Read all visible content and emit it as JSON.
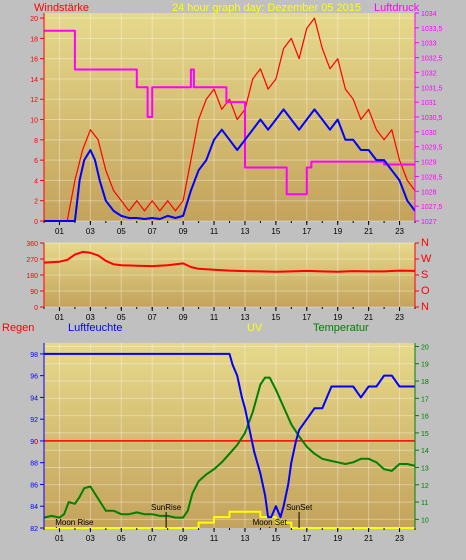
{
  "header": {
    "title": "24 hour graph day:  Dezember 05 2015",
    "left_label": "Windstärke",
    "right_label": "Luftdruck"
  },
  "colors": {
    "background": "#c0c0c0",
    "wind": "#ff0000",
    "wind_avg": "#0000ff",
    "pressure": "#ff00ff",
    "direction": "#ff0000",
    "rain": "#ff0000",
    "humidity": "#0000ff",
    "uv": "#ffff00",
    "temperature": "#008000",
    "axis_left": "#ff0000",
    "axis_right": "#ff00ff"
  },
  "chart_data": [
    {
      "type": "line",
      "name": "wind_pressure",
      "x_ticks": [
        "01",
        "03",
        "05",
        "07",
        "09",
        "11",
        "13",
        "15",
        "17",
        "19",
        "21",
        "23"
      ],
      "y_left_ticks": [
        "0",
        "2",
        "4",
        "6",
        "8",
        "10",
        "12",
        "14",
        "16",
        "18",
        "20"
      ],
      "y_right_ticks": [
        "1027",
        "1027,5",
        "1028",
        "1028,5",
        "1029",
        "1029,5",
        "1030",
        "1030,5",
        "1031",
        "1031,5",
        "1032",
        "1032,5",
        "1033",
        "1033,5",
        "1034"
      ],
      "ylim_left": [
        0,
        20.5
      ],
      "ylim_right": [
        1027,
        1034
      ],
      "xlim": [
        0,
        24
      ],
      "series": [
        {
          "name": "Windstärke",
          "axis": "left",
          "x": [
            0,
            1.5,
            2,
            2.5,
            3,
            3.5,
            4,
            4.5,
            5,
            5.5,
            6,
            6.5,
            7,
            7.5,
            8,
            8.5,
            9,
            9.5,
            10,
            10.5,
            11,
            11.5,
            12,
            12.5,
            13,
            13.5,
            14,
            14.5,
            15,
            15.5,
            16,
            16.5,
            17,
            17.5,
            18,
            18.5,
            19,
            19.5,
            20,
            20.5,
            21,
            21.5,
            22,
            22.5,
            23,
            23.5,
            24
          ],
          "y": [
            0,
            0,
            4,
            7,
            9,
            8,
            5,
            3,
            2,
            1,
            2,
            1,
            2,
            1,
            2,
            1,
            2,
            6,
            10,
            12,
            13,
            11,
            12,
            10,
            11,
            14,
            15,
            13,
            14,
            17,
            18,
            16,
            19,
            20,
            17,
            15,
            16,
            13,
            12,
            10,
            11,
            9,
            8,
            9,
            6,
            4,
            3
          ]
        },
        {
          "name": "Wind average",
          "axis": "left",
          "x": [
            0,
            1.5,
            2,
            2.3,
            2.6,
            3,
            3.3,
            3.6,
            4,
            4.5,
            5,
            5.5,
            6,
            6.5,
            7,
            7.5,
            8,
            8.5,
            9,
            9.5,
            10,
            10.5,
            11,
            11.5,
            12,
            12.5,
            13,
            13.5,
            14,
            14.5,
            15,
            15.5,
            16,
            16.5,
            17,
            17.5,
            18,
            18.5,
            19,
            19.5,
            20,
            20.5,
            21,
            21.5,
            22,
            22.5,
            23,
            23.5,
            24
          ],
          "y": [
            0,
            0,
            0,
            4,
            6,
            7,
            6,
            4,
            2,
            1,
            0.5,
            0.3,
            0.3,
            0.2,
            0.3,
            0.2,
            0.5,
            0.3,
            0.5,
            3,
            5,
            6,
            8,
            9,
            8,
            7,
            8,
            9,
            10,
            9,
            10,
            11,
            10,
            9,
            10,
            11,
            10,
            9,
            10,
            8,
            8,
            7,
            7,
            6,
            6,
            5,
            4,
            2,
            1
          ]
        },
        {
          "name": "Luftdruck",
          "axis": "right",
          "x": [
            0,
            2,
            2,
            6,
            6,
            6.7,
            6.7,
            7,
            7,
            9.5,
            9.5,
            9.7,
            9.7,
            11.8,
            11.8,
            13,
            13,
            15.7,
            15.7,
            17,
            17,
            17.3,
            17.3,
            22,
            22,
            24
          ],
          "y": [
            1033.4,
            1033.4,
            1032.1,
            1032.1,
            1031.5,
            1031.5,
            1030.5,
            1030.5,
            1031.5,
            1031.5,
            1032.1,
            1032.1,
            1031.5,
            1031.5,
            1031.0,
            1031.0,
            1028.8,
            1028.8,
            1027.9,
            1027.9,
            1028.8,
            1028.8,
            1029.0,
            1029.0,
            1028.9,
            1028.9
          ]
        }
      ]
    },
    {
      "type": "line",
      "name": "wind_direction",
      "x_ticks": [
        "01",
        "03",
        "05",
        "07",
        "09",
        "11",
        "13",
        "15",
        "17",
        "19",
        "21",
        "23"
      ],
      "y_left_ticks": [
        "0",
        "90",
        "180",
        "270",
        "360"
      ],
      "y_right_ticks": [
        "N",
        "W",
        "S",
        "O",
        "N"
      ],
      "ylim": [
        0,
        360
      ],
      "xlim": [
        0,
        24
      ],
      "series": [
        {
          "name": "Wind direction",
          "x": [
            0,
            1,
            1.5,
            2,
            2.5,
            3,
            3.5,
            4,
            4.5,
            5,
            6,
            7,
            8,
            9,
            9.5,
            10,
            11,
            12,
            13,
            14,
            15,
            16,
            17,
            18,
            19,
            20,
            21,
            22,
            23,
            24
          ],
          "y": [
            250,
            255,
            265,
            295,
            310,
            305,
            290,
            260,
            240,
            235,
            232,
            230,
            235,
            245,
            225,
            215,
            210,
            205,
            202,
            200,
            198,
            200,
            203,
            200,
            198,
            202,
            200,
            200,
            205,
            203
          ]
        }
      ]
    },
    {
      "type": "line",
      "name": "rain_humidity_uv_temp",
      "top_labels": [
        "Regen",
        "Luftfeuchte",
        "UV",
        "Temperatur"
      ],
      "x_ticks": [
        "01",
        "03",
        "05",
        "07",
        "09",
        "11",
        "13",
        "15",
        "17",
        "19",
        "21",
        "23"
      ],
      "y_left_ticks": [
        "82",
        "84",
        "86",
        "88",
        "90",
        "92",
        "94",
        "96",
        "98"
      ],
      "y_right_ticks": [
        "10",
        "11",
        "12",
        "13",
        "14",
        "15",
        "16",
        "17",
        "18",
        "19",
        "20"
      ],
      "rain_axis_label": "0",
      "ylim_left": [
        82,
        99
      ],
      "ylim_right": [
        9.5,
        20.2
      ],
      "xlim": [
        0,
        24
      ],
      "annotations": [
        "Moon Rise",
        "SunRise",
        "Moon Set",
        "SunSet"
      ],
      "series": [
        {
          "name": "Luftfeuchte",
          "axis": "left",
          "x": [
            0,
            12,
            12.2,
            12.5,
            12.8,
            13.0,
            13.3,
            13.6,
            14,
            14.3,
            14.5,
            14.7,
            15,
            15.3,
            15.5,
            15.8,
            16,
            16.3,
            16.5,
            17,
            17.5,
            18,
            18.3,
            18.6,
            19,
            19.5,
            20,
            20.5,
            21,
            21.5,
            22,
            22.5,
            23,
            23.5,
            24
          ],
          "y": [
            98,
            98,
            97,
            96,
            94,
            93,
            91,
            89,
            87,
            85,
            83,
            83,
            84,
            83,
            84,
            86,
            88,
            90,
            91,
            92,
            93,
            93,
            94,
            95,
            95,
            95,
            95,
            94,
            95,
            95,
            96,
            96,
            95,
            95,
            95
          ]
        },
        {
          "name": "Temperatur",
          "axis": "right",
          "x": [
            0,
            0.5,
            1,
            1.3,
            1.6,
            2,
            2.3,
            2.6,
            3,
            3.5,
            4,
            4.5,
            5,
            5.5,
            6,
            6.5,
            7,
            7.5,
            8,
            8.5,
            9,
            9.3,
            9.6,
            10,
            10.5,
            11,
            11.5,
            12,
            12.5,
            13,
            13.5,
            14,
            14.3,
            14.6,
            15,
            15.5,
            16,
            16.5,
            17,
            17.5,
            18,
            18.5,
            19,
            19.5,
            20,
            20.5,
            21,
            21.5,
            22,
            22.5,
            23,
            23.5,
            24
          ],
          "y": [
            10.1,
            10.2,
            10.1,
            10.3,
            11.0,
            10.9,
            11.3,
            11.8,
            11.9,
            11.2,
            10.5,
            10.5,
            10.3,
            10.3,
            10.4,
            10.3,
            10.3,
            10.2,
            10.2,
            10.1,
            10.1,
            10.5,
            11.5,
            12.2,
            12.6,
            12.9,
            13.3,
            13.8,
            14.3,
            15.0,
            16.2,
            17.8,
            18.2,
            18.2,
            17.5,
            16.5,
            15.5,
            14.8,
            14.2,
            13.8,
            13.5,
            13.4,
            13.3,
            13.2,
            13.3,
            13.5,
            13.5,
            13.3,
            12.9,
            12.8,
            13.2,
            13.2,
            13.1
          ]
        },
        {
          "name": "UV",
          "axis": "left",
          "x": [
            0,
            10,
            10,
            11,
            11,
            12,
            12,
            12.5,
            12.5,
            14,
            14,
            15,
            15,
            16,
            16,
            24
          ],
          "y": [
            82,
            82,
            82.5,
            82.5,
            83,
            83,
            83.5,
            83.5,
            83.5,
            83.5,
            83,
            83,
            82.5,
            82.5,
            82,
            82
          ]
        },
        {
          "name": "Regen",
          "axis": "left",
          "x": [
            0,
            24
          ],
          "y": [
            90,
            90
          ]
        }
      ]
    }
  ]
}
